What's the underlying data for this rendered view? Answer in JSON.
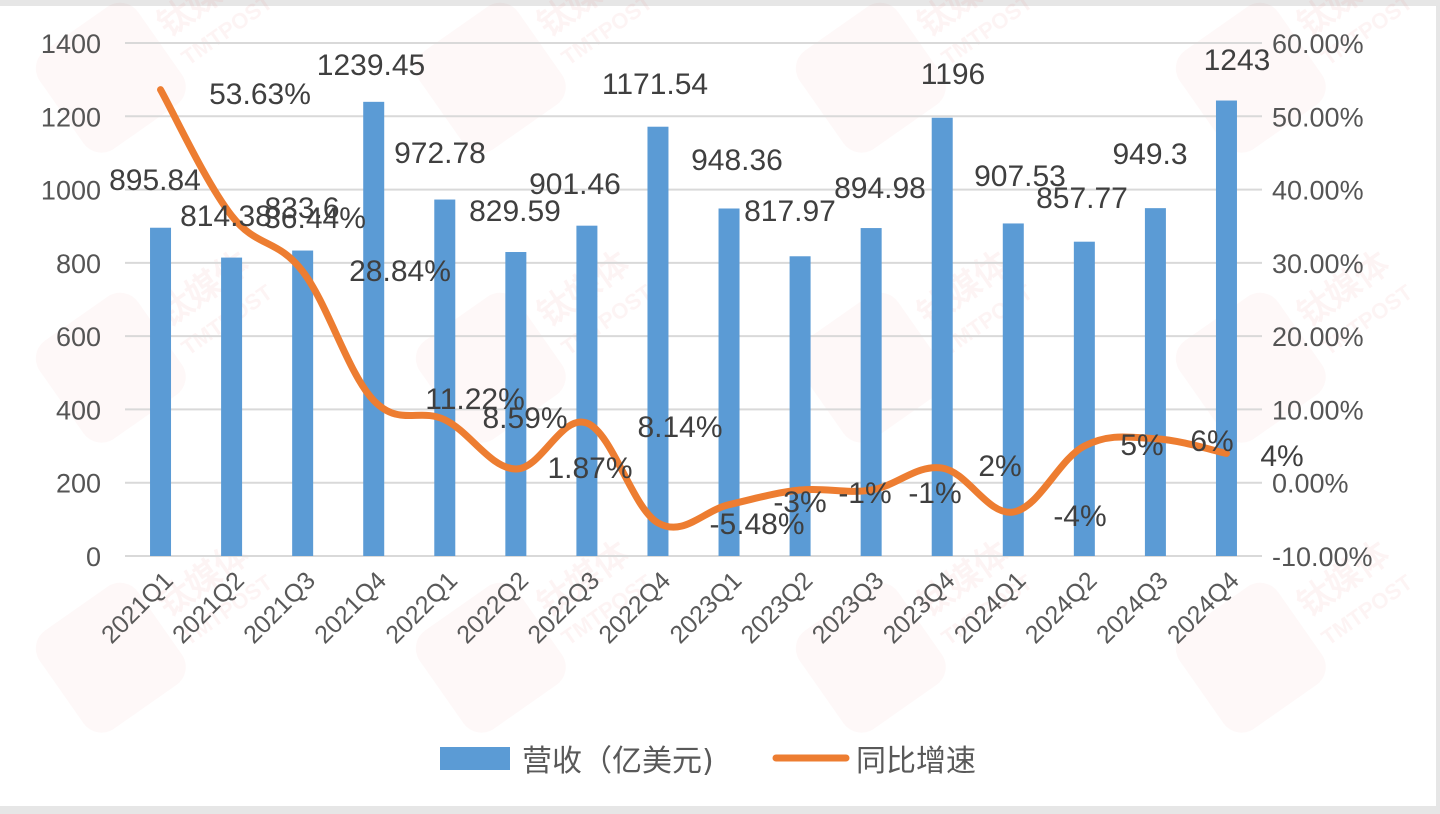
{
  "chart_data": {
    "type": "bar+line",
    "title": "",
    "categories": [
      "2021Q1",
      "2021Q2",
      "2021Q3",
      "2021Q4",
      "2022Q1",
      "2022Q2",
      "2022Q3",
      "2022Q4",
      "2023Q1",
      "2023Q2",
      "2023Q3",
      "2023Q4",
      "2024Q1",
      "2024Q2",
      "2024Q3",
      "2024Q4"
    ],
    "series": [
      {
        "name": "营收（亿美元)",
        "type": "bar",
        "axis": "left",
        "color": "#5b9bd5",
        "values": [
          895.84,
          814.38,
          833.6,
          1239.45,
          972.78,
          829.59,
          901.46,
          1171.54,
          948.36,
          817.97,
          894.98,
          1196,
          907.53,
          857.77,
          949.3,
          1243
        ],
        "labels": [
          "895.84",
          "814.38",
          "833.6",
          "1239.45",
          "972.78",
          "829.59",
          "901.46",
          "1171.54",
          "948.36",
          "817.97",
          "894.98",
          "1196",
          "907.53",
          "857.77",
          "949.3",
          "1243"
        ]
      },
      {
        "name": "同比增速",
        "type": "line",
        "axis": "right",
        "color": "#ed7d31",
        "values": [
          53.63,
          36.44,
          28.84,
          11.22,
          8.59,
          1.87,
          8.14,
          -5.48,
          -3,
          -1,
          -1,
          2,
          -4,
          5,
          6,
          4
        ],
        "labels": [
          "53.63%",
          "36.44%",
          "28.84%",
          "11.22%",
          "8.59%",
          "1.87%",
          "8.14%",
          "-5.48%",
          "-3%",
          "-1%",
          "-1%",
          "2%",
          "-4%",
          "5%",
          "6%",
          "4%"
        ]
      }
    ],
    "left_axis": {
      "ylim": [
        0,
        1400
      ],
      "ticks": [
        0,
        200,
        400,
        600,
        800,
        1000,
        1200,
        1400
      ],
      "tick_labels": [
        "0",
        "200",
        "400",
        "600",
        "800",
        "1000",
        "1200",
        "1400"
      ]
    },
    "right_axis": {
      "ylim": [
        -10,
        60
      ],
      "ticks": [
        -10,
        0,
        10,
        20,
        30,
        40,
        50,
        60
      ],
      "tick_labels": [
        "-10.00%",
        "0.00%",
        "10.00%",
        "20.00%",
        "30.00%",
        "40.00%",
        "50.00%",
        "60.00%"
      ]
    },
    "xlabel": "",
    "ylabel": "",
    "grid": true,
    "legend_position": "bottom",
    "legend": [
      {
        "label": "营收（亿美元)",
        "color": "#5b9bd5",
        "marker": "bar"
      },
      {
        "label": "同比增速",
        "color": "#ed7d31",
        "marker": "line"
      }
    ]
  },
  "watermark": {
    "cn": "钛媒体",
    "en": "TMTPOST"
  }
}
